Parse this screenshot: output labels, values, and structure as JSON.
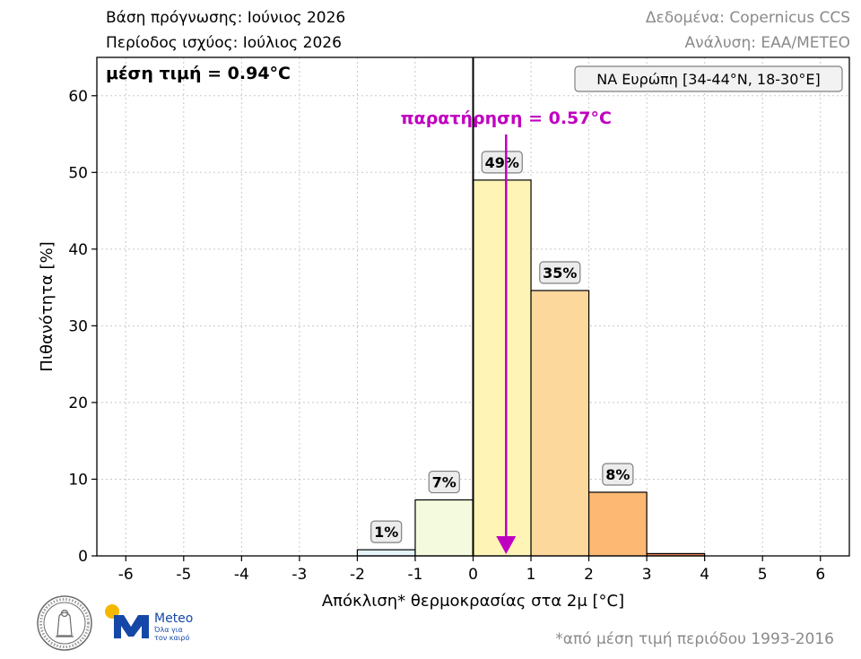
{
  "header": {
    "forecast_base": "Βάση πρόγνωσης: Ιούνιος 2026",
    "valid_period": "Περίοδος ισχύος: Ιούλιος 2026",
    "data_source": "Δεδομένα: Copernicus CCS",
    "analysis": "Ανάλυση: ΕΑΑ/ΜΕΤΕΟ"
  },
  "chart_data": {
    "type": "bar",
    "x_bins": [
      [
        -2,
        -1
      ],
      [
        -1,
        0
      ],
      [
        0,
        1
      ],
      [
        1,
        2
      ],
      [
        2,
        3
      ],
      [
        3,
        4
      ]
    ],
    "values": [
      0.8,
      7.3,
      49.0,
      34.6,
      8.3,
      0.3
    ],
    "bar_labels": [
      "1%",
      "7%",
      "49%",
      "35%",
      "8%",
      ""
    ],
    "bar_colors": [
      "#e4f4f8",
      "#f3fadd",
      "#fdf4b6",
      "#fdd89c",
      "#fdb874",
      "#e88256"
    ],
    "xlim": [
      -6.5,
      6.5
    ],
    "ylim": [
      0,
      65
    ],
    "x_ticks": [
      -6,
      -5,
      -4,
      -3,
      -2,
      -1,
      0,
      1,
      2,
      3,
      4,
      5,
      6
    ],
    "x_tick_labels": [
      "-6",
      "-5",
      "-4",
      "-3",
      "-2",
      "-1",
      "0",
      "1",
      "2",
      "3",
      "4",
      "5",
      "6"
    ],
    "y_ticks": [
      0,
      10,
      20,
      30,
      40,
      50,
      60
    ],
    "y_tick_labels": [
      "0",
      "10",
      "20",
      "30",
      "40",
      "50",
      "60"
    ],
    "xlabel": "Απόκλιση* θερμοκρασίας στα 2μ [°C]",
    "ylabel": "Πιθανότητα [%]",
    "grid": true,
    "mean_label": "μέση τιμή = 0.94°C",
    "region_label": "ΝΑ Ευρώπη [34-44°N, 18-30°E]",
    "observation": {
      "label": "παρατήρηση = 0.57°C",
      "value": 0.57,
      "color": "#c000c0"
    },
    "zero_line": 0
  },
  "footnote": "*από μέση τιμή περιόδου 1993-2016",
  "logos": {
    "meteo_name": "Meteo",
    "meteo_tagline_1": "Όλα για",
    "meteo_tagline_2": "τον καιρό",
    "noa_icon": "noa-seal-icon",
    "meteo_icon": "meteo-logo-icon"
  }
}
